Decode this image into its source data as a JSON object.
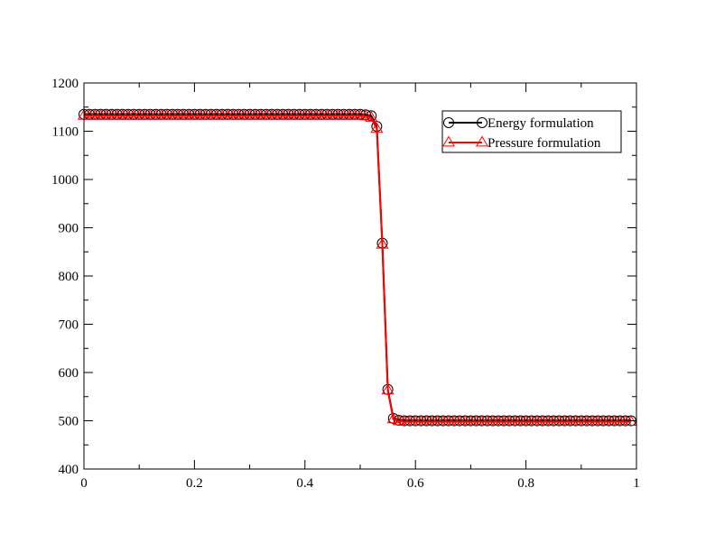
{
  "chart_data": {
    "type": "line",
    "title": "",
    "xlabel": "",
    "ylabel": "",
    "xlim": [
      0,
      1
    ],
    "ylim": [
      400,
      1200
    ],
    "x_ticks": [
      0,
      0.2,
      0.4,
      0.6,
      0.8,
      1
    ],
    "x_tick_labels": [
      "0",
      "0.2",
      "0.4",
      "0.6",
      "0.8",
      "1"
    ],
    "y_ticks": [
      400,
      500,
      600,
      700,
      800,
      900,
      1000,
      1100,
      1200
    ],
    "y_tick_labels": [
      "400",
      "500",
      "600",
      "700",
      "800",
      "900",
      "1000",
      "1100",
      "1200"
    ],
    "grid": false,
    "legend_position": "top-right",
    "series": [
      {
        "name": "Energy formulation",
        "color": "#000000",
        "marker": "circle",
        "x": [
          0,
          0.01,
          0.02,
          0.03,
          0.04,
          0.05,
          0.06,
          0.07,
          0.08,
          0.09,
          0.1,
          0.11,
          0.12,
          0.13,
          0.14,
          0.15,
          0.16,
          0.17,
          0.18,
          0.19,
          0.2,
          0.21,
          0.22,
          0.23,
          0.24,
          0.25,
          0.26,
          0.27,
          0.28,
          0.29,
          0.3,
          0.31,
          0.32,
          0.33,
          0.34,
          0.35,
          0.36,
          0.37,
          0.38,
          0.39,
          0.4,
          0.41,
          0.42,
          0.43,
          0.44,
          0.45,
          0.46,
          0.47,
          0.48,
          0.49,
          0.5,
          0.51,
          0.52,
          0.53,
          0.54,
          0.55,
          0.56,
          0.57,
          0.58,
          0.59,
          0.6,
          0.61,
          0.62,
          0.63,
          0.64,
          0.65,
          0.66,
          0.67,
          0.68,
          0.69,
          0.7,
          0.71,
          0.72,
          0.73,
          0.74,
          0.75,
          0.76,
          0.77,
          0.78,
          0.79,
          0.8,
          0.81,
          0.82,
          0.83,
          0.84,
          0.85,
          0.86,
          0.87,
          0.88,
          0.89,
          0.9,
          0.91,
          0.92,
          0.93,
          0.94,
          0.95,
          0.96,
          0.97,
          0.98,
          0.99
        ],
        "y": [
          1135,
          1135,
          1135,
          1135,
          1135,
          1135,
          1135,
          1135,
          1135,
          1135,
          1135,
          1135,
          1135,
          1135,
          1135,
          1135,
          1135,
          1135,
          1135,
          1135,
          1135,
          1135,
          1135,
          1135,
          1135,
          1135,
          1135,
          1135,
          1135,
          1135,
          1135,
          1135,
          1135,
          1135,
          1135,
          1135,
          1135,
          1135,
          1135,
          1135,
          1135,
          1135,
          1135,
          1135,
          1135,
          1135,
          1135,
          1135,
          1135,
          1135,
          1135,
          1134,
          1132,
          1110,
          868,
          565,
          505,
          501,
          500,
          500,
          500,
          500,
          500,
          500,
          500,
          500,
          500,
          500,
          500,
          500,
          500,
          500,
          500,
          500,
          500,
          500,
          500,
          500,
          500,
          500,
          500,
          500,
          500,
          500,
          500,
          500,
          500,
          500,
          500,
          500,
          500,
          500,
          500,
          500,
          500,
          500,
          500,
          500,
          500,
          500
        ]
      },
      {
        "name": "Pressure formulation",
        "color": "#ff0000",
        "marker": "triangle",
        "x": [
          0,
          0.01,
          0.02,
          0.03,
          0.04,
          0.05,
          0.06,
          0.07,
          0.08,
          0.09,
          0.1,
          0.11,
          0.12,
          0.13,
          0.14,
          0.15,
          0.16,
          0.17,
          0.18,
          0.19,
          0.2,
          0.21,
          0.22,
          0.23,
          0.24,
          0.25,
          0.26,
          0.27,
          0.28,
          0.29,
          0.3,
          0.31,
          0.32,
          0.33,
          0.34,
          0.35,
          0.36,
          0.37,
          0.38,
          0.39,
          0.4,
          0.41,
          0.42,
          0.43,
          0.44,
          0.45,
          0.46,
          0.47,
          0.48,
          0.49,
          0.5,
          0.51,
          0.52,
          0.53,
          0.54,
          0.55,
          0.56,
          0.57,
          0.58,
          0.59,
          0.6,
          0.61,
          0.62,
          0.63,
          0.64,
          0.65,
          0.66,
          0.67,
          0.68,
          0.69,
          0.7,
          0.71,
          0.72,
          0.73,
          0.74,
          0.75,
          0.76,
          0.77,
          0.78,
          0.79,
          0.8,
          0.81,
          0.82,
          0.83,
          0.84,
          0.85,
          0.86,
          0.87,
          0.88,
          0.89,
          0.9,
          0.91,
          0.92,
          0.93,
          0.94,
          0.95,
          0.96,
          0.97,
          0.98,
          0.99
        ],
        "y": [
          1132,
          1132,
          1132,
          1132,
          1132,
          1132,
          1132,
          1132,
          1132,
          1132,
          1132,
          1132,
          1132,
          1132,
          1132,
          1132,
          1132,
          1132,
          1132,
          1132,
          1132,
          1132,
          1132,
          1132,
          1132,
          1132,
          1132,
          1132,
          1132,
          1132,
          1132,
          1132,
          1132,
          1132,
          1132,
          1132,
          1132,
          1132,
          1132,
          1132,
          1132,
          1132,
          1132,
          1132,
          1132,
          1132,
          1132,
          1132,
          1132,
          1132,
          1132,
          1131,
          1128,
          1105,
          865,
          563,
          503,
          499,
          498,
          498,
          498,
          498,
          498,
          498,
          498,
          498,
          498,
          498,
          498,
          498,
          498,
          498,
          498,
          498,
          498,
          498,
          498,
          498,
          498,
          498,
          498,
          498,
          498,
          498,
          498,
          498,
          498,
          498,
          498,
          498,
          498,
          498,
          498,
          498,
          498,
          498,
          498,
          498,
          498,
          498
        ]
      }
    ]
  }
}
